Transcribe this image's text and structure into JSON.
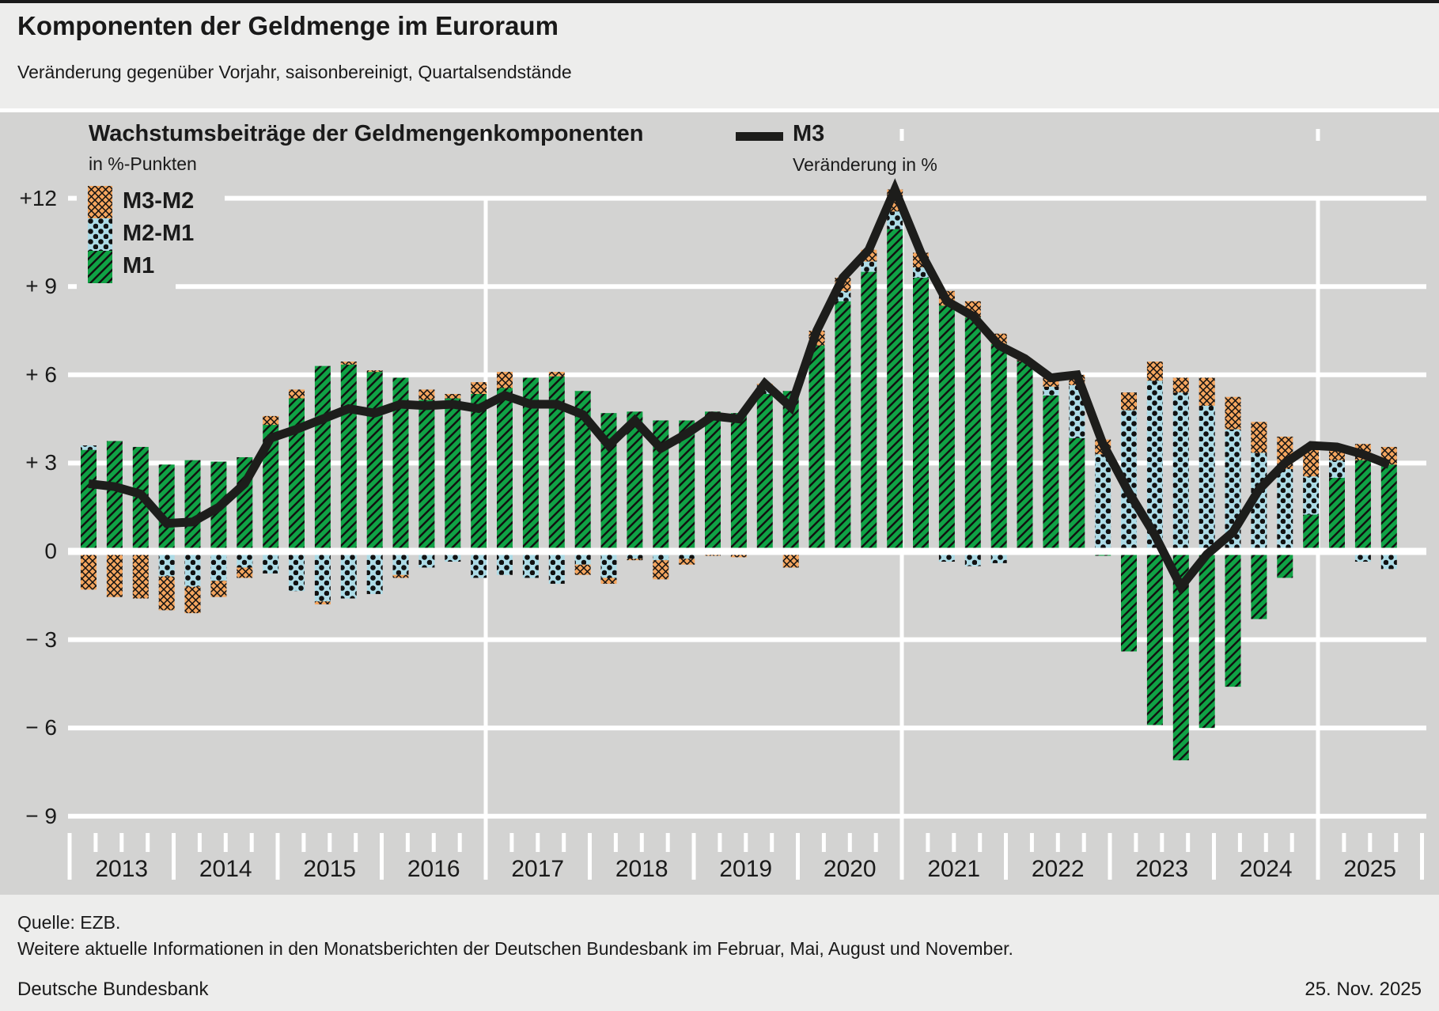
{
  "page": {
    "title": "Komponenten der Geldmenge im Euroraum",
    "subtitle": "Veränderung gegenüber Vorjahr, saisonbereinigt, Quartalsendstände"
  },
  "footer": {
    "source": "Quelle: EZB.",
    "note": "Weitere aktuelle Informationen in den Monatsberichten der Deutschen Bundesbank im Februar, Mai, August und November.",
    "publisher": "Deutsche Bundesbank",
    "date": "25. Nov. 2025"
  },
  "colors": {
    "m1": "#10a245",
    "m2m1": "#addbe6",
    "m3m2": "#f4a55e",
    "line": "#1d1d1b",
    "grid": "#ffffff",
    "plot_bg": "#d3d3d2",
    "page_bg": "#ededec",
    "text": "#1a1a1a"
  },
  "chart_data": {
    "type": "bar+line",
    "title": "Wachstumsbeiträge der Geldmengenkomponenten",
    "unit_label": "in %-Punkten",
    "line_series": {
      "name": "M3",
      "unit": "Veränderung in %"
    },
    "legend": [
      {
        "key": "m3m2",
        "label": "M3-M2"
      },
      {
        "key": "m2m1",
        "label": "M2-M1"
      },
      {
        "key": "m1",
        "label": "M1"
      }
    ],
    "stack_order": [
      "m1",
      "m2m1",
      "m3m2"
    ],
    "ylim": [
      -9,
      12
    ],
    "y_ticks": [
      {
        "value": 12,
        "label": "+12"
      },
      {
        "value": 9,
        "label": "+ 9"
      },
      {
        "value": 6,
        "label": "+ 6"
      },
      {
        "value": 3,
        "label": "+ 3"
      },
      {
        "value": 0,
        "label": "0"
      },
      {
        "value": -3,
        "label": "− 3"
      },
      {
        "value": -6,
        "label": "− 6"
      },
      {
        "value": -9,
        "label": "− 9"
      }
    ],
    "years": [
      "2013",
      "2014",
      "2015",
      "2016",
      "2017",
      "2018",
      "2019",
      "2020",
      "2021",
      "2022",
      "2023",
      "2024",
      "2025"
    ],
    "divider_years": [
      2017,
      2021,
      2025
    ],
    "quarters": [
      {
        "label": "2013 Q1",
        "m1": 3.45,
        "m2m1": 0.15,
        "m3m2": -1.3,
        "m3": 2.3
      },
      {
        "label": "2013 Q2",
        "m1": 3.75,
        "m2m1": 0.0,
        "m3m2": -1.55,
        "m3": 2.2
      },
      {
        "label": "2013 Q3",
        "m1": 3.55,
        "m2m1": 0.0,
        "m3m2": -1.6,
        "m3": 1.95
      },
      {
        "label": "2013 Q4",
        "m1": 2.95,
        "m2m1": -0.85,
        "m3m2": -1.15,
        "m3": 0.95
      },
      {
        "label": "2014 Q1",
        "m1": 3.1,
        "m2m1": -1.2,
        "m3m2": -0.9,
        "m3": 1.0
      },
      {
        "label": "2014 Q2",
        "m1": 3.05,
        "m2m1": -1.0,
        "m3m2": -0.55,
        "m3": 1.5
      },
      {
        "label": "2014 Q3",
        "m1": 3.2,
        "m2m1": -0.55,
        "m3m2": -0.35,
        "m3": 2.3
      },
      {
        "label": "2014 Q4",
        "m1": 4.3,
        "m2m1": -0.75,
        "m3m2": 0.3,
        "m3": 3.85
      },
      {
        "label": "2015 Q1",
        "m1": 5.2,
        "m2m1": -1.35,
        "m3m2": 0.3,
        "m3": 4.15
      },
      {
        "label": "2015 Q2",
        "m1": 6.3,
        "m2m1": -1.7,
        "m3m2": -0.1,
        "m3": 4.5
      },
      {
        "label": "2015 Q3",
        "m1": 6.35,
        "m2m1": -1.6,
        "m3m2": 0.1,
        "m3": 4.85
      },
      {
        "label": "2015 Q4",
        "m1": 6.1,
        "m2m1": -1.45,
        "m3m2": 0.05,
        "m3": 4.7
      },
      {
        "label": "2016 Q1",
        "m1": 5.9,
        "m2m1": -0.8,
        "m3m2": -0.1,
        "m3": 5.0
      },
      {
        "label": "2016 Q2",
        "m1": 5.15,
        "m2m1": -0.55,
        "m3m2": 0.35,
        "m3": 4.95
      },
      {
        "label": "2016 Q3",
        "m1": 5.2,
        "m2m1": -0.35,
        "m3m2": 0.15,
        "m3": 5.0
      },
      {
        "label": "2016 Q4",
        "m1": 5.35,
        "m2m1": -0.9,
        "m3m2": 0.4,
        "m3": 4.85
      },
      {
        "label": "2017 Q1",
        "m1": 5.55,
        "m2m1": -0.8,
        "m3m2": 0.55,
        "m3": 5.3
      },
      {
        "label": "2017 Q2",
        "m1": 5.9,
        "m2m1": -0.9,
        "m3m2": 0.0,
        "m3": 5.0
      },
      {
        "label": "2017 Q3",
        "m1": 5.95,
        "m2m1": -1.1,
        "m3m2": 0.15,
        "m3": 5.0
      },
      {
        "label": "2017 Q4",
        "m1": 5.45,
        "m2m1": -0.45,
        "m3m2": -0.35,
        "m3": 4.65
      },
      {
        "label": "2018 Q1",
        "m1": 4.7,
        "m2m1": -0.9,
        "m3m2": -0.2,
        "m3": 3.6
      },
      {
        "label": "2018 Q2",
        "m1": 4.75,
        "m2m1": -0.25,
        "m3m2": -0.05,
        "m3": 4.45
      },
      {
        "label": "2018 Q3",
        "m1": 4.45,
        "m2m1": -0.3,
        "m3m2": -0.65,
        "m3": 3.5
      },
      {
        "label": "2018 Q4",
        "m1": 4.45,
        "m2m1": -0.25,
        "m3m2": -0.2,
        "m3": 4.0
      },
      {
        "label": "2019 Q1",
        "m1": 4.75,
        "m2m1": 0.0,
        "m3m2": -0.15,
        "m3": 4.6
      },
      {
        "label": "2019 Q2",
        "m1": 4.7,
        "m2m1": 0.0,
        "m3m2": -0.2,
        "m3": 4.5
      },
      {
        "label": "2019 Q3",
        "m1": 5.35,
        "m2m1": 0.3,
        "m3m2": 0.05,
        "m3": 5.7
      },
      {
        "label": "2019 Q4",
        "m1": 5.45,
        "m2m1": 0.0,
        "m3m2": -0.55,
        "m3": 4.9
      },
      {
        "label": "2020 Q1",
        "m1": 7.0,
        "m2m1": 0.0,
        "m3m2": 0.5,
        "m3": 7.5
      },
      {
        "label": "2020 Q2",
        "m1": 8.5,
        "m2m1": 0.35,
        "m3m2": 0.45,
        "m3": 9.3
      },
      {
        "label": "2020 Q3",
        "m1": 9.5,
        "m2m1": 0.35,
        "m3m2": 0.4,
        "m3": 10.25
      },
      {
        "label": "2020 Q4",
        "m1": 10.95,
        "m2m1": 0.6,
        "m3m2": 0.75,
        "m3": 12.3
      },
      {
        "label": "2021 Q1",
        "m1": 9.3,
        "m2m1": 0.35,
        "m3m2": 0.5,
        "m3": 10.15
      },
      {
        "label": "2021 Q2",
        "m1": 8.35,
        "m2m1": -0.35,
        "m3m2": 0.5,
        "m3": 8.5
      },
      {
        "label": "2021 Q3",
        "m1": 7.95,
        "m2m1": -0.5,
        "m3m2": 0.55,
        "m3": 8.0
      },
      {
        "label": "2021 Q4",
        "m1": 7.05,
        "m2m1": -0.4,
        "m3m2": 0.35,
        "m3": 7.0
      },
      {
        "label": "2022 Q1",
        "m1": 6.45,
        "m2m1": 0.0,
        "m3m2": 0.1,
        "m3": 6.55
      },
      {
        "label": "2022 Q2",
        "m1": 5.3,
        "m2m1": 0.3,
        "m3m2": 0.3,
        "m3": 5.9
      },
      {
        "label": "2022 Q3",
        "m1": 3.85,
        "m2m1": 1.8,
        "m3m2": 0.35,
        "m3": 6.0
      },
      {
        "label": "2022 Q4",
        "m1": -0.15,
        "m2m1": 3.3,
        "m3m2": 0.5,
        "m3": 3.65
      },
      {
        "label": "2023 Q1",
        "m1": -3.4,
        "m2m1": 4.8,
        "m3m2": 0.6,
        "m3": 2.0
      },
      {
        "label": "2023 Q2",
        "m1": -5.9,
        "m2m1": 5.8,
        "m3m2": 0.65,
        "m3": 0.55
      },
      {
        "label": "2023 Q3",
        "m1": -7.1,
        "m2m1": 5.4,
        "m3m2": 0.5,
        "m3": -1.2
      },
      {
        "label": "2023 Q4",
        "m1": -6.0,
        "m2m1": 4.95,
        "m3m2": 0.95,
        "m3": -0.1
      },
      {
        "label": "2024 Q1",
        "m1": -4.6,
        "m2m1": 4.15,
        "m3m2": 1.1,
        "m3": 0.65
      },
      {
        "label": "2024 Q2",
        "m1": -2.3,
        "m2m1": 3.35,
        "m3m2": 1.05,
        "m3": 2.1
      },
      {
        "label": "2024 Q3",
        "m1": -0.9,
        "m2m1": 2.8,
        "m3m2": 1.1,
        "m3": 3.0
      },
      {
        "label": "2024 Q4",
        "m1": 1.25,
        "m2m1": 1.3,
        "m3m2": 1.05,
        "m3": 3.6
      },
      {
        "label": "2025 Q1",
        "m1": 2.5,
        "m2m1": 0.6,
        "m3m2": 0.45,
        "m3": 3.55
      },
      {
        "label": "2025 Q2",
        "m1": 3.1,
        "m2m1": -0.35,
        "m3m2": 0.55,
        "m3": 3.3
      },
      {
        "label": "2025 Q3",
        "m1": 2.95,
        "m2m1": -0.6,
        "m3m2": 0.6,
        "m3": 2.95
      }
    ]
  }
}
